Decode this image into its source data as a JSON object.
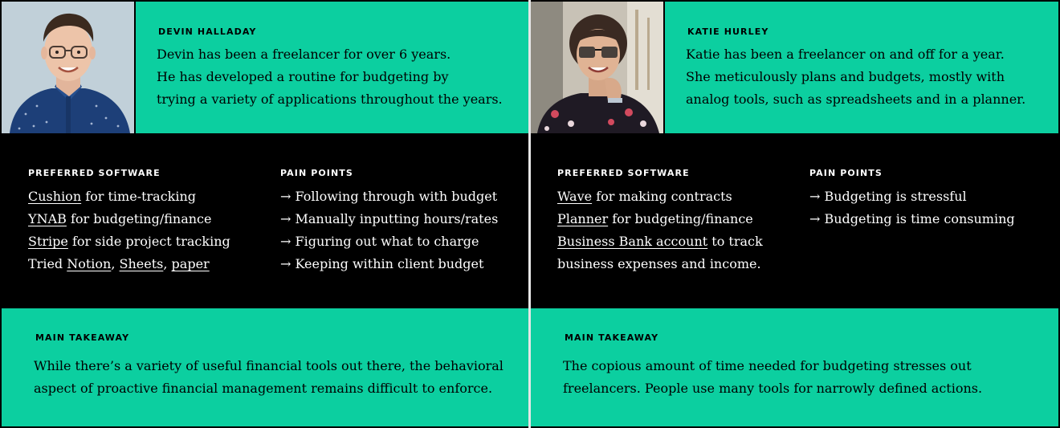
{
  "personas": [
    {
      "name": "DEVIN HALLADAY",
      "bio": [
        "Devin has been a freelancer for over 6 years.",
        "He has developed a routine for budgeting by",
        "trying a variety of applications throughout the years."
      ],
      "software_heading": "PREFERRED SOFTWARE",
      "software": [
        {
          "link": "Cushion",
          "rest": " for time-tracking"
        },
        {
          "link": "YNAB",
          "rest": " for budgeting/finance"
        },
        {
          "link": "Stripe",
          "rest": " for side project tracking"
        }
      ],
      "tried": {
        "prefix": "Tried ",
        "links": [
          "Notion",
          "Sheets",
          "paper"
        ],
        "sep": ", "
      },
      "pain_heading": "PAIN POINTS",
      "pain_points": [
        "→ Following through with budget",
        "→ Manually inputting hours/rates",
        "→ Figuring out what to charge",
        "→ Keeping within client budget"
      ],
      "takeaway_heading": "MAIN TAKEAWAY",
      "takeaway": [
        "While there’s a variety of useful financial tools out there, the behavioral",
        "aspect of proactive financial management remains difficult to enforce."
      ]
    },
    {
      "name": "KATIE HURLEY",
      "bio": [
        "Katie has been a freelancer on and off for a year.",
        "She meticulously plans and budgets, mostly with",
        "analog tools, such as spreadsheets and in a planner."
      ],
      "software_heading": "PREFERRED SOFTWARE",
      "software": [
        {
          "link": "Wave",
          "rest": " for making contracts"
        },
        {
          "link": "Planner",
          "rest": " for budgeting/finance"
        },
        {
          "link": "Business Bank account",
          "rest": " to track"
        }
      ],
      "software_extra": "business expenses and income.",
      "pain_heading": "PAIN POINTS",
      "pain_points": [
        "→ Budgeting is stressful",
        "→ Budgeting is time consuming"
      ],
      "takeaway_heading": "MAIN TAKEAWAY",
      "takeaway": [
        "The copious amount of time needed for budgeting stresses out",
        "freelancers. People use many tools for narrowly defined actions."
      ]
    }
  ],
  "colors": {
    "accent": "#0ccfa0",
    "dark": "#000000",
    "text_light": "#ffffff"
  }
}
